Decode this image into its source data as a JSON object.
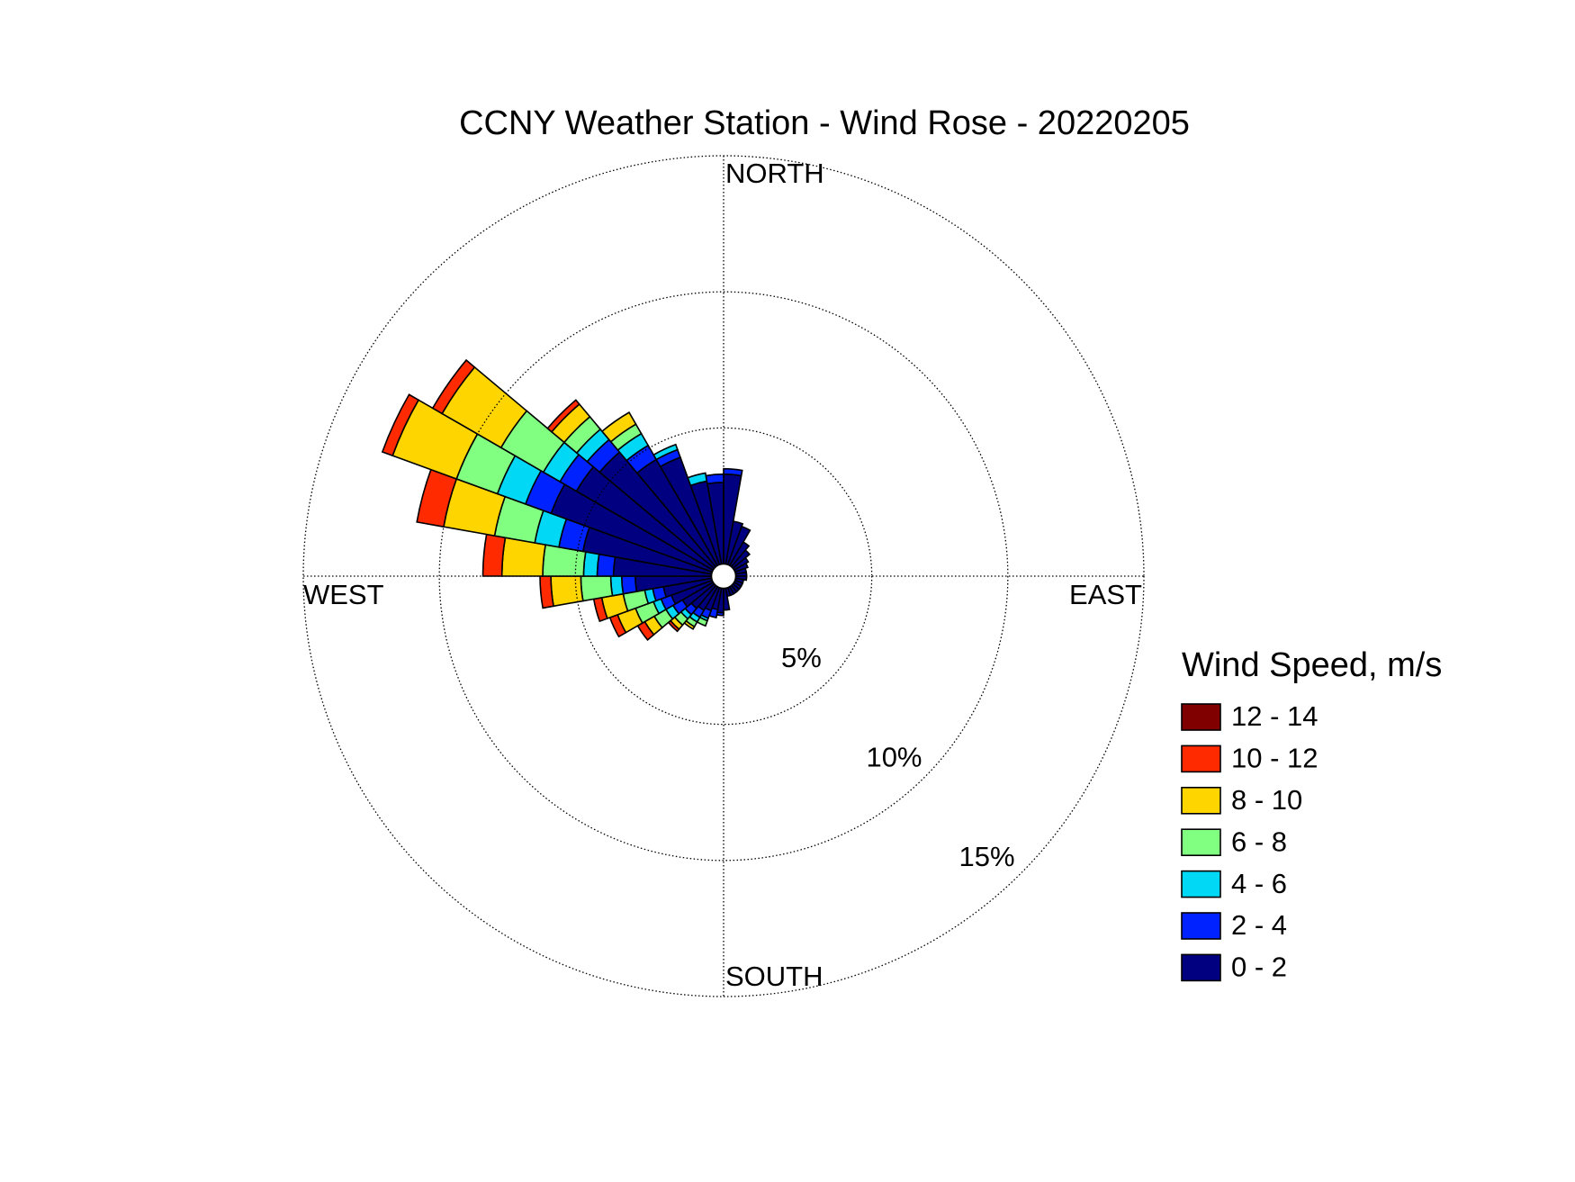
{
  "chart_data": {
    "type": "windrose",
    "title": "CCNY Weather Station - Wind Rose - 20220205",
    "direction_labels": {
      "north": "NORTH",
      "east": "EAST",
      "south": "SOUTH",
      "west": "WEST"
    },
    "legend_title": "Wind Speed, m/s",
    "x": [
      5,
      15,
      25,
      35,
      45,
      55,
      65,
      75,
      85,
      95,
      105,
      115,
      125,
      135,
      145,
      155,
      165,
      175,
      185,
      195,
      205,
      215,
      225,
      235,
      245,
      255,
      265,
      275,
      285,
      295,
      305,
      315,
      325,
      335,
      345,
      355
    ],
    "ylim": [
      0,
      15
    ],
    "yticks": [
      {
        "value": 5,
        "label": "5%"
      },
      {
        "value": 10,
        "label": "10%"
      },
      {
        "value": 15,
        "label": "15%"
      }
    ],
    "series": [
      {
        "name": "0 - 2",
        "color": "#000080",
        "values": [
          3.3,
          1.6,
          1.5,
          1.0,
          0.8,
          0.6,
          0.5,
          0.4,
          0.4,
          0.4,
          0.3,
          0.3,
          0.3,
          0.3,
          0.3,
          0.3,
          0.3,
          0.8,
          0.9,
          0.8,
          0.9,
          1.0,
          1.1,
          1.3,
          1.6,
          1.8,
          2.8,
          3.6,
          4.8,
          6.3,
          5.8,
          5.5,
          4.5,
          4.2,
          3.1,
          3.0
        ]
      },
      {
        "name": "2 - 4",
        "color": "#0022ff",
        "values": [
          0.2,
          0,
          0,
          0,
          0,
          0,
          0,
          0,
          0,
          0,
          0,
          0,
          0,
          0,
          0,
          0,
          0,
          0,
          0.1,
          0.3,
          0.3,
          0.3,
          0.3,
          0.4,
          0.4,
          0.4,
          0.5,
          0.6,
          0.9,
          1.0,
          0.7,
          0.6,
          0.6,
          0.3,
          0,
          0.3
        ]
      },
      {
        "name": "4 - 6",
        "color": "#00d8f5",
        "values": [
          0,
          0,
          0,
          0,
          0,
          0,
          0,
          0,
          0,
          0,
          0,
          0,
          0,
          0,
          0,
          0,
          0,
          0,
          0,
          0,
          0.1,
          0.2,
          0.2,
          0.3,
          0.3,
          0.3,
          0.4,
          0.5,
          0.9,
          1.1,
          0.7,
          0.5,
          0.5,
          0.2,
          0.3,
          0
        ]
      },
      {
        "name": "6 - 8",
        "color": "#80ff80",
        "values": [
          0,
          0,
          0,
          0,
          0,
          0,
          0,
          0,
          0,
          0,
          0,
          0,
          0,
          0,
          0,
          0,
          0,
          0,
          0,
          0,
          0.2,
          0.2,
          0.3,
          0.5,
          0.7,
          0.8,
          1.1,
          1.5,
          1.5,
          1.6,
          1.8,
          0.6,
          0.4,
          0,
          0,
          0
        ]
      },
      {
        "name": "8 - 10",
        "color": "#ffd500",
        "values": [
          0,
          0,
          0,
          0,
          0,
          0,
          0,
          0,
          0,
          0,
          0,
          0,
          0,
          0,
          0,
          0,
          0,
          0,
          0,
          0,
          0,
          0.1,
          0.2,
          0.4,
          0.7,
          0.8,
          1.1,
          1.5,
          1.9,
          2.5,
          2.5,
          0.6,
          0.5,
          0,
          0,
          0
        ]
      },
      {
        "name": "10 - 12",
        "color": "#ff2a00",
        "values": [
          0,
          0,
          0,
          0,
          0,
          0,
          0,
          0,
          0,
          0,
          0,
          0,
          0,
          0,
          0,
          0,
          0,
          0,
          0,
          0,
          0,
          0,
          0.1,
          0.3,
          0.3,
          0.3,
          0.4,
          0.7,
          1.0,
          0.4,
          0.4,
          0.2,
          0,
          0,
          0,
          0
        ]
      },
      {
        "name": "12 - 14",
        "color": "#800000",
        "values": [
          0,
          0,
          0,
          0,
          0,
          0,
          0,
          0,
          0,
          0,
          0,
          0,
          0,
          0,
          0,
          0,
          0,
          0,
          0,
          0,
          0,
          0,
          0,
          0,
          0,
          0,
          0,
          0,
          0,
          0,
          0,
          0,
          0,
          0,
          0,
          0
        ]
      }
    ]
  }
}
